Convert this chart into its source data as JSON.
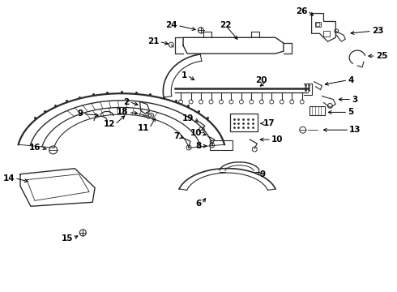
{
  "bg_color": "#ffffff",
  "line_color": "#2a2a2a",
  "text_color": "#000000",
  "fig_width": 4.9,
  "fig_height": 3.6,
  "dpi": 100
}
